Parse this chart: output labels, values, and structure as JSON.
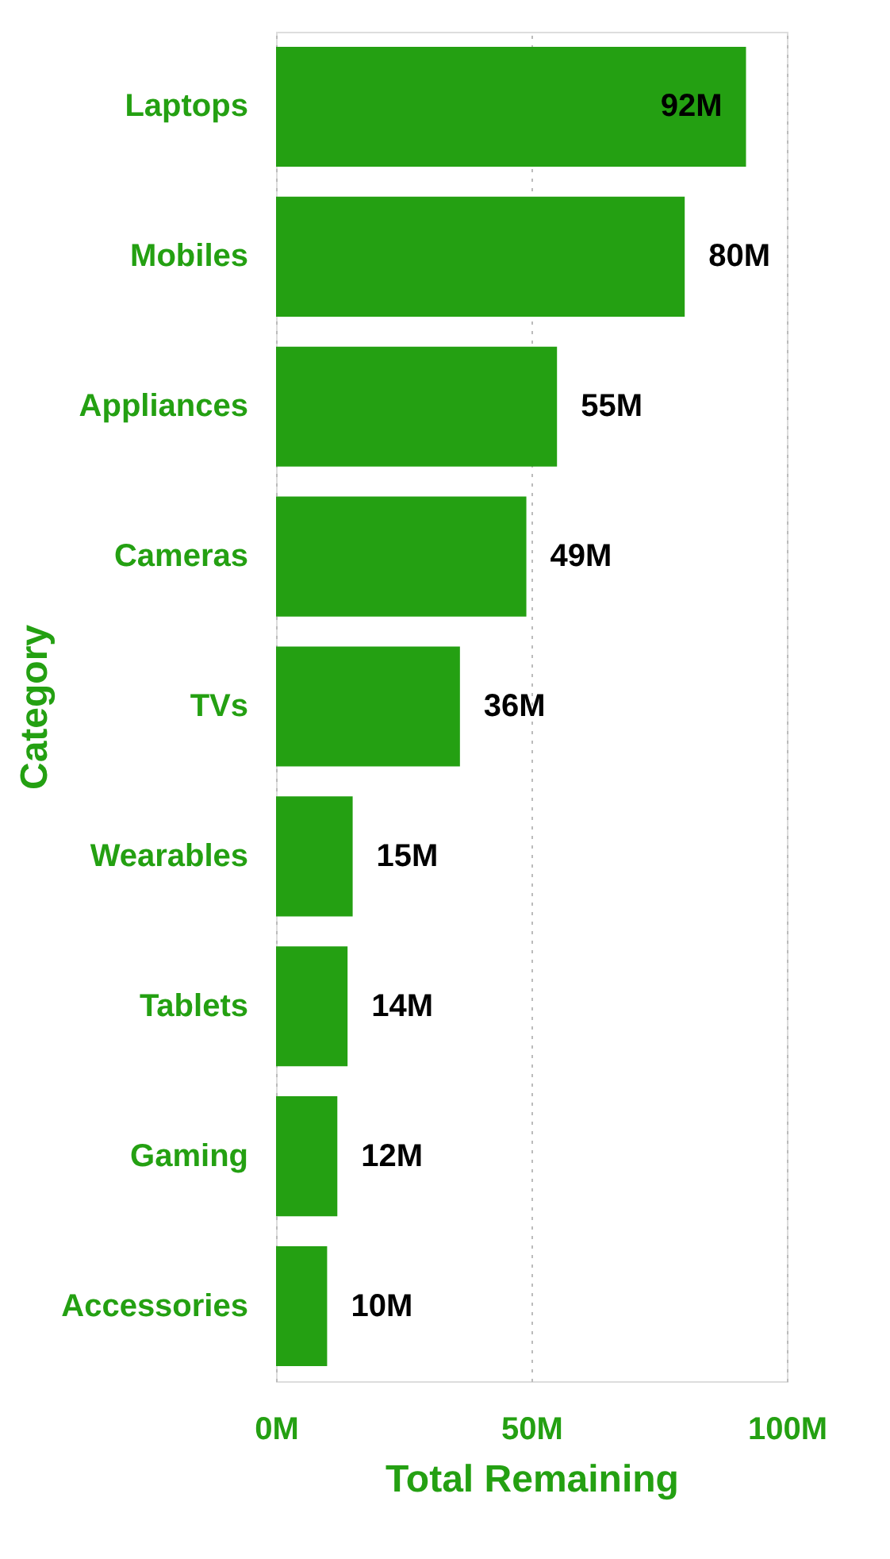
{
  "chart_data": {
    "type": "bar",
    "orientation": "horizontal",
    "xlabel": "Total Remaining",
    "ylabel": "Category",
    "categories": [
      "Laptops",
      "Mobiles",
      "Appliances",
      "Cameras",
      "TVs",
      "Wearables",
      "Tablets",
      "Gaming",
      "Accessories"
    ],
    "values": [
      92,
      80,
      55,
      49,
      36,
      15,
      14,
      12,
      10
    ],
    "value_labels": [
      "92M",
      "80M",
      "55M",
      "49M",
      "36M",
      "15M",
      "14M",
      "12M",
      "10M"
    ],
    "color": "#24a012",
    "xlim": [
      0,
      100
    ],
    "xticks": [
      {
        "value": 0,
        "label": "0M"
      },
      {
        "value": 50,
        "label": "50M"
      },
      {
        "value": 100,
        "label": "100M"
      }
    ],
    "grid": "x"
  }
}
